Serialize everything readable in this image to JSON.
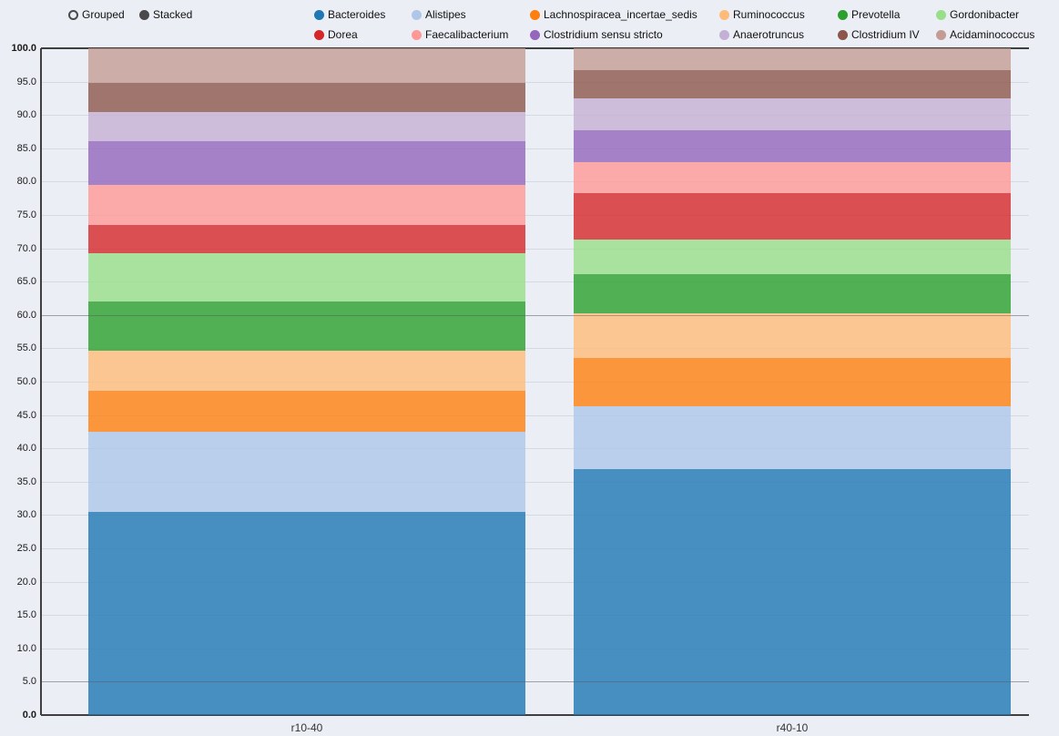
{
  "controls": {
    "mode_options": [
      {
        "label": "Grouped",
        "selected": false
      },
      {
        "label": "Stacked",
        "selected": true
      }
    ]
  },
  "chart_data": {
    "type": "bar",
    "stacked": true,
    "orientation": "vertical",
    "title": "",
    "xlabel": "",
    "ylabel": "",
    "categories": [
      "r10-40",
      "r40-10"
    ],
    "series": [
      {
        "name": "Bacteroides",
        "color": "#1f77b4",
        "values": [
          30.5,
          36.9
        ]
      },
      {
        "name": "Alistipes",
        "color": "#aec7e8",
        "values": [
          12.0,
          9.4
        ]
      },
      {
        "name": "Lachnospiracea_incertae_sedis",
        "color": "#ff7f0e",
        "values": [
          6.1,
          7.3
        ]
      },
      {
        "name": "Ruminococcus",
        "color": "#ffbb78",
        "values": [
          6.0,
          6.6
        ]
      },
      {
        "name": "Prevotella",
        "color": "#2ca02c",
        "values": [
          7.4,
          5.9
        ]
      },
      {
        "name": "Gordonibacter",
        "color": "#98df8a",
        "values": [
          7.3,
          5.2
        ]
      },
      {
        "name": "Dorea",
        "color": "#d62728",
        "values": [
          4.2,
          7.0
        ]
      },
      {
        "name": "Faecalibacterium",
        "color": "#ff9896",
        "values": [
          6.0,
          4.6
        ]
      },
      {
        "name": "Clostridium sensu stricto",
        "color": "#9467bd",
        "values": [
          6.6,
          4.8
        ]
      },
      {
        "name": "Anaerotruncus",
        "color": "#c5b0d5",
        "values": [
          4.3,
          4.8
        ]
      },
      {
        "name": "Clostridium IV",
        "color": "#8c564b",
        "values": [
          4.4,
          4.2
        ]
      },
      {
        "name": "Acidaminococcus",
        "color": "#c49c94",
        "values": [
          5.2,
          3.3
        ]
      }
    ],
    "ylim": [
      0,
      100
    ],
    "ytick_labels": [
      "0.0",
      "5.0",
      "10.0",
      "15.0",
      "20.0",
      "25.0",
      "30.0",
      "35.0",
      "40.0",
      "45.0",
      "50.0",
      "55.0",
      "60.0",
      "65.0",
      "70.0",
      "75.0",
      "80.0",
      "85.0",
      "90.0",
      "95.0",
      "100.0"
    ],
    "grid": true,
    "emphasized_gridlines": [
      5,
      60
    ],
    "legend_position": "top",
    "legend_rows": 2,
    "bar_opacity": 0.8
  }
}
